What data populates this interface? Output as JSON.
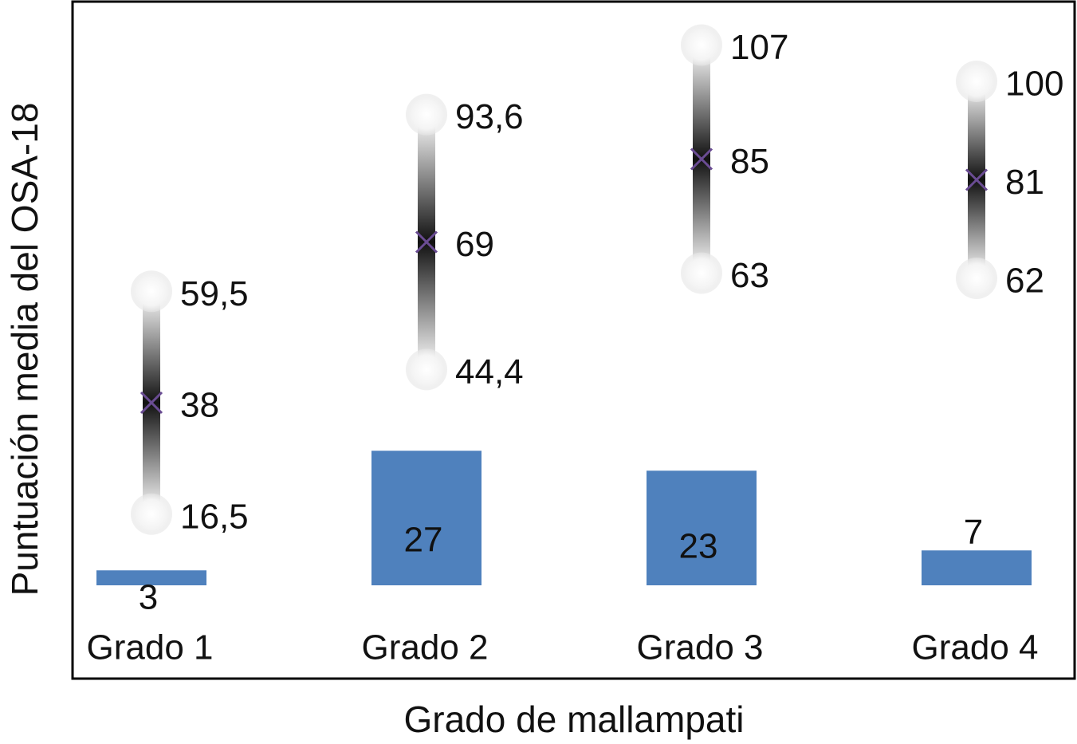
{
  "chart_data": {
    "type": "bar",
    "xlabel": "Grado de mallampati",
    "ylabel": "Puntuación media del OSA-18",
    "categories": [
      "Grado 1",
      "Grado 2",
      "Grado 3",
      "Grado 4"
    ],
    "bars": {
      "values": [
        3,
        27,
        23,
        7
      ],
      "labels": [
        "3",
        "27",
        "23",
        "7"
      ],
      "color": "#4f81bd"
    },
    "ranges": {
      "low": [
        16.5,
        44.4,
        63,
        62
      ],
      "mean": [
        38,
        69,
        85,
        81
      ],
      "high": [
        59.5,
        93.6,
        107,
        100
      ],
      "low_labels": [
        "16,5",
        "44,4",
        "63",
        "62"
      ],
      "mean_labels": [
        "38",
        "69",
        "85",
        "81"
      ],
      "high_labels": [
        "59,5",
        "93,6",
        "107",
        "100"
      ],
      "marker_color": "#6a4c93"
    },
    "grid": false
  }
}
